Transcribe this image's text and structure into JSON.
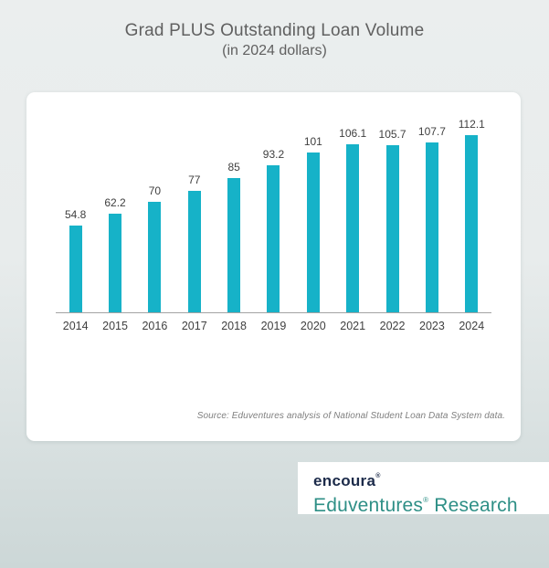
{
  "title": "Grad PLUS Outstanding Loan Volume",
  "subtitle": "(in 2024 dollars)",
  "chart_data": {
    "type": "bar",
    "categories": [
      "2014",
      "2015",
      "2016",
      "2017",
      "2018",
      "2019",
      "2020",
      "2021",
      "2022",
      "2023",
      "2024"
    ],
    "values": [
      54.8,
      62.2,
      70,
      77,
      85,
      93.2,
      101,
      106.1,
      105.7,
      107.7,
      112.1
    ],
    "value_labels": [
      "54.8",
      "62.2",
      "70",
      "77",
      "85",
      "93.2",
      "101",
      "106.1",
      "105.7",
      "107.7",
      "112.1"
    ],
    "title": "Grad PLUS Outstanding Loan Volume",
    "subtitle": "(in 2024 dollars)",
    "xlabel": "",
    "ylabel": "",
    "ylim": [
      0,
      120
    ],
    "grid": false,
    "legend": false,
    "bar_color": "#16b2c8",
    "axis_color": "#a3a3a3"
  },
  "source_note": "Source: Eduventures analysis of National Student Loan Data System data.",
  "logo": {
    "brand": "encoura",
    "brand_mark": "®",
    "product": "Eduventures",
    "product_mark": "®",
    "suffix": "Research",
    "brand_color": "#1c2b4a",
    "product_color": "#2e8f86"
  },
  "colors": {
    "title_text": "#606060",
    "label_text": "#3f3f3f",
    "source_text": "#7f7f7f",
    "card_background": "#ffffff",
    "page_background_top": "#ebeeee",
    "page_background_bottom": "#ccd7d7"
  }
}
